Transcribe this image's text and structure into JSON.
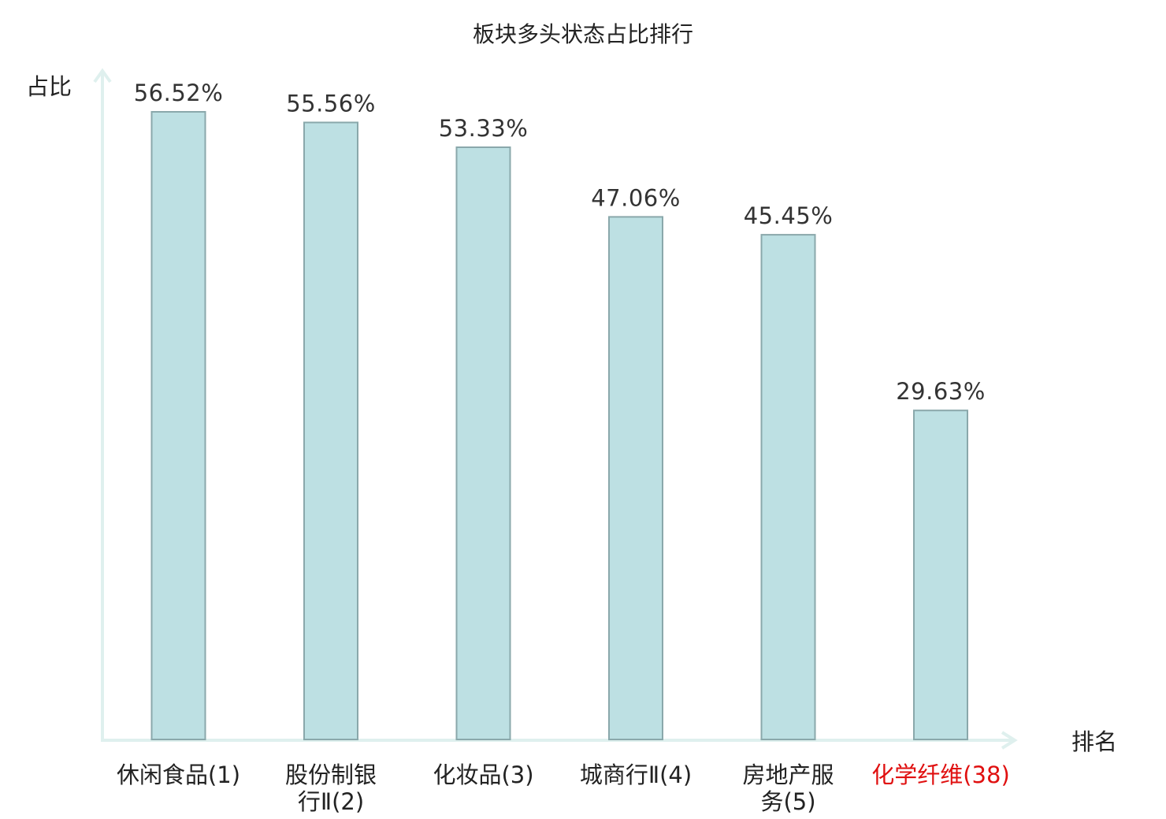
{
  "chart_data": {
    "type": "bar",
    "title": "板块多头状态占比排行",
    "ylabel": "占比",
    "xlabel": "排名",
    "ylim": [
      0,
      60
    ],
    "grid": false,
    "categories": [
      [
        "休闲食品(1)"
      ],
      [
        "股份制银",
        "行Ⅱ(2)"
      ],
      [
        "化妆品(3)"
      ],
      [
        "城商行Ⅱ(4)"
      ],
      [
        "房地产服",
        "务(5)"
      ],
      [
        "化学纤维(38)"
      ]
    ],
    "values": [
      56.52,
      55.56,
      53.33,
      47.06,
      45.45,
      29.63
    ],
    "value_labels": [
      "56.52%",
      "55.56%",
      "53.33%",
      "47.06%",
      "45.45%",
      "29.63%"
    ],
    "highlight_index": 5
  },
  "colors": {
    "bar_fill": "#bde0e3",
    "bar_stroke": "#8aa8ab",
    "axis": "#dff0ee",
    "text": "#222222",
    "highlight_text": "#e01010"
  }
}
